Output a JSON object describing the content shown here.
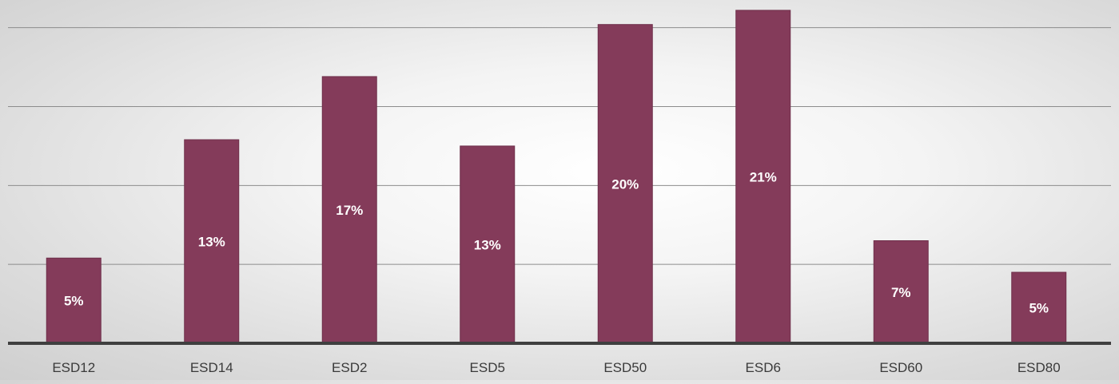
{
  "chart_data": {
    "type": "bar",
    "categories": [
      "ESD12",
      "ESD14",
      "ESD2",
      "ESD5",
      "ESD50",
      "ESD6",
      "ESD60",
      "ESD80"
    ],
    "values": [
      5.4,
      12.9,
      16.9,
      12.5,
      20.2,
      21.1,
      6.5,
      4.5
    ],
    "data_labels": [
      "5%",
      "13%",
      "17%",
      "13%",
      "20%",
      "21%",
      "7%",
      "5%"
    ],
    "ylim": [
      0,
      21.5
    ],
    "grid": true,
    "title": "",
    "xlabel": "",
    "ylabel": "",
    "colors": {
      "bar": "#843b5a",
      "bar_edge": "#6e2f4a"
    }
  }
}
